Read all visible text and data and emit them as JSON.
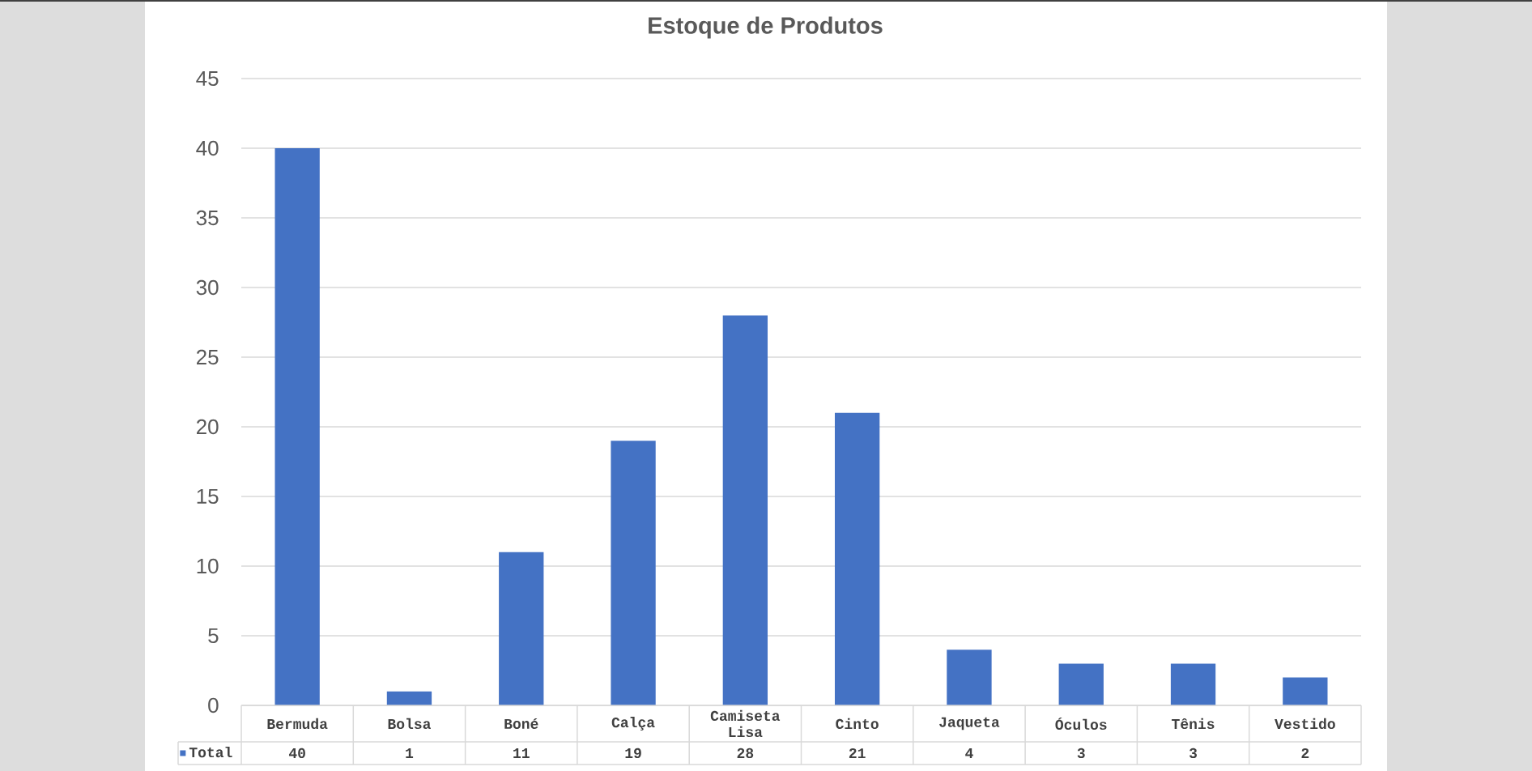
{
  "chart_data": {
    "type": "bar",
    "title": "Estoque de Produtos",
    "categories": [
      "Bermuda",
      "Bolsa",
      "Boné",
      "Calça",
      "Camiseta Lisa",
      "Cinto",
      "Jaqueta",
      "Óculos",
      "Tênis",
      "Vestido"
    ],
    "series": [
      {
        "name": "Total",
        "color": "#4472c4",
        "values": [
          40,
          1,
          11,
          19,
          28,
          21,
          4,
          3,
          3,
          2
        ]
      }
    ],
    "ylim": [
      0,
      45
    ],
    "yticks": [
      0,
      5,
      10,
      15,
      20,
      25,
      30,
      35,
      40,
      45
    ],
    "grid": "y",
    "legend": "bottom left",
    "data_labels": true
  }
}
